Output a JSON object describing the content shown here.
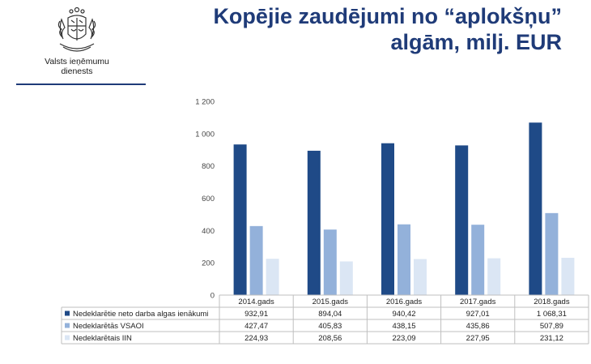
{
  "header": {
    "title_line1": "Kopējie zaudējumi no “aplokšņu”",
    "title_line2": "algām, milj. EUR",
    "org_line1": "Valsts ieņēmumu",
    "org_line2": "dienests"
  },
  "colors": {
    "title": "#1f3b78",
    "series": [
      "#1f4a87",
      "#93b1da",
      "#dbe6f4"
    ]
  },
  "chart_data": {
    "type": "bar",
    "categories": [
      "2014.gads",
      "2015.gads",
      "2016.gads",
      "2017.gads",
      "2018.gads"
    ],
    "series": [
      {
        "name": "Nedeklarētie neto darba algas ienākumi",
        "values": [
          932.91,
          894.04,
          940.42,
          927.01,
          1068.31
        ],
        "labels": [
          "932,91",
          "894,04",
          "940,42",
          "927,01",
          "1 068,31"
        ]
      },
      {
        "name": "Nedeklarētās VSAOI",
        "values": [
          427.47,
          405.83,
          438.15,
          435.86,
          507.89
        ],
        "labels": [
          "427,47",
          "405,83",
          "438,15",
          "435,86",
          "507,89"
        ]
      },
      {
        "name": "Nedeklarētais IIN",
        "values": [
          224.93,
          208.56,
          223.09,
          227.95,
          231.12
        ],
        "labels": [
          "224,93",
          "208,56",
          "223,09",
          "227,95",
          "231,12"
        ]
      }
    ],
    "ylim": [
      0,
      1200
    ],
    "yticks": [
      0,
      200,
      400,
      600,
      800,
      1000,
      1200
    ],
    "ytick_labels": [
      "0",
      "200",
      "400",
      "600",
      "800",
      "1 000",
      "1 200"
    ],
    "grid": false,
    "legend": "data-table-below"
  }
}
